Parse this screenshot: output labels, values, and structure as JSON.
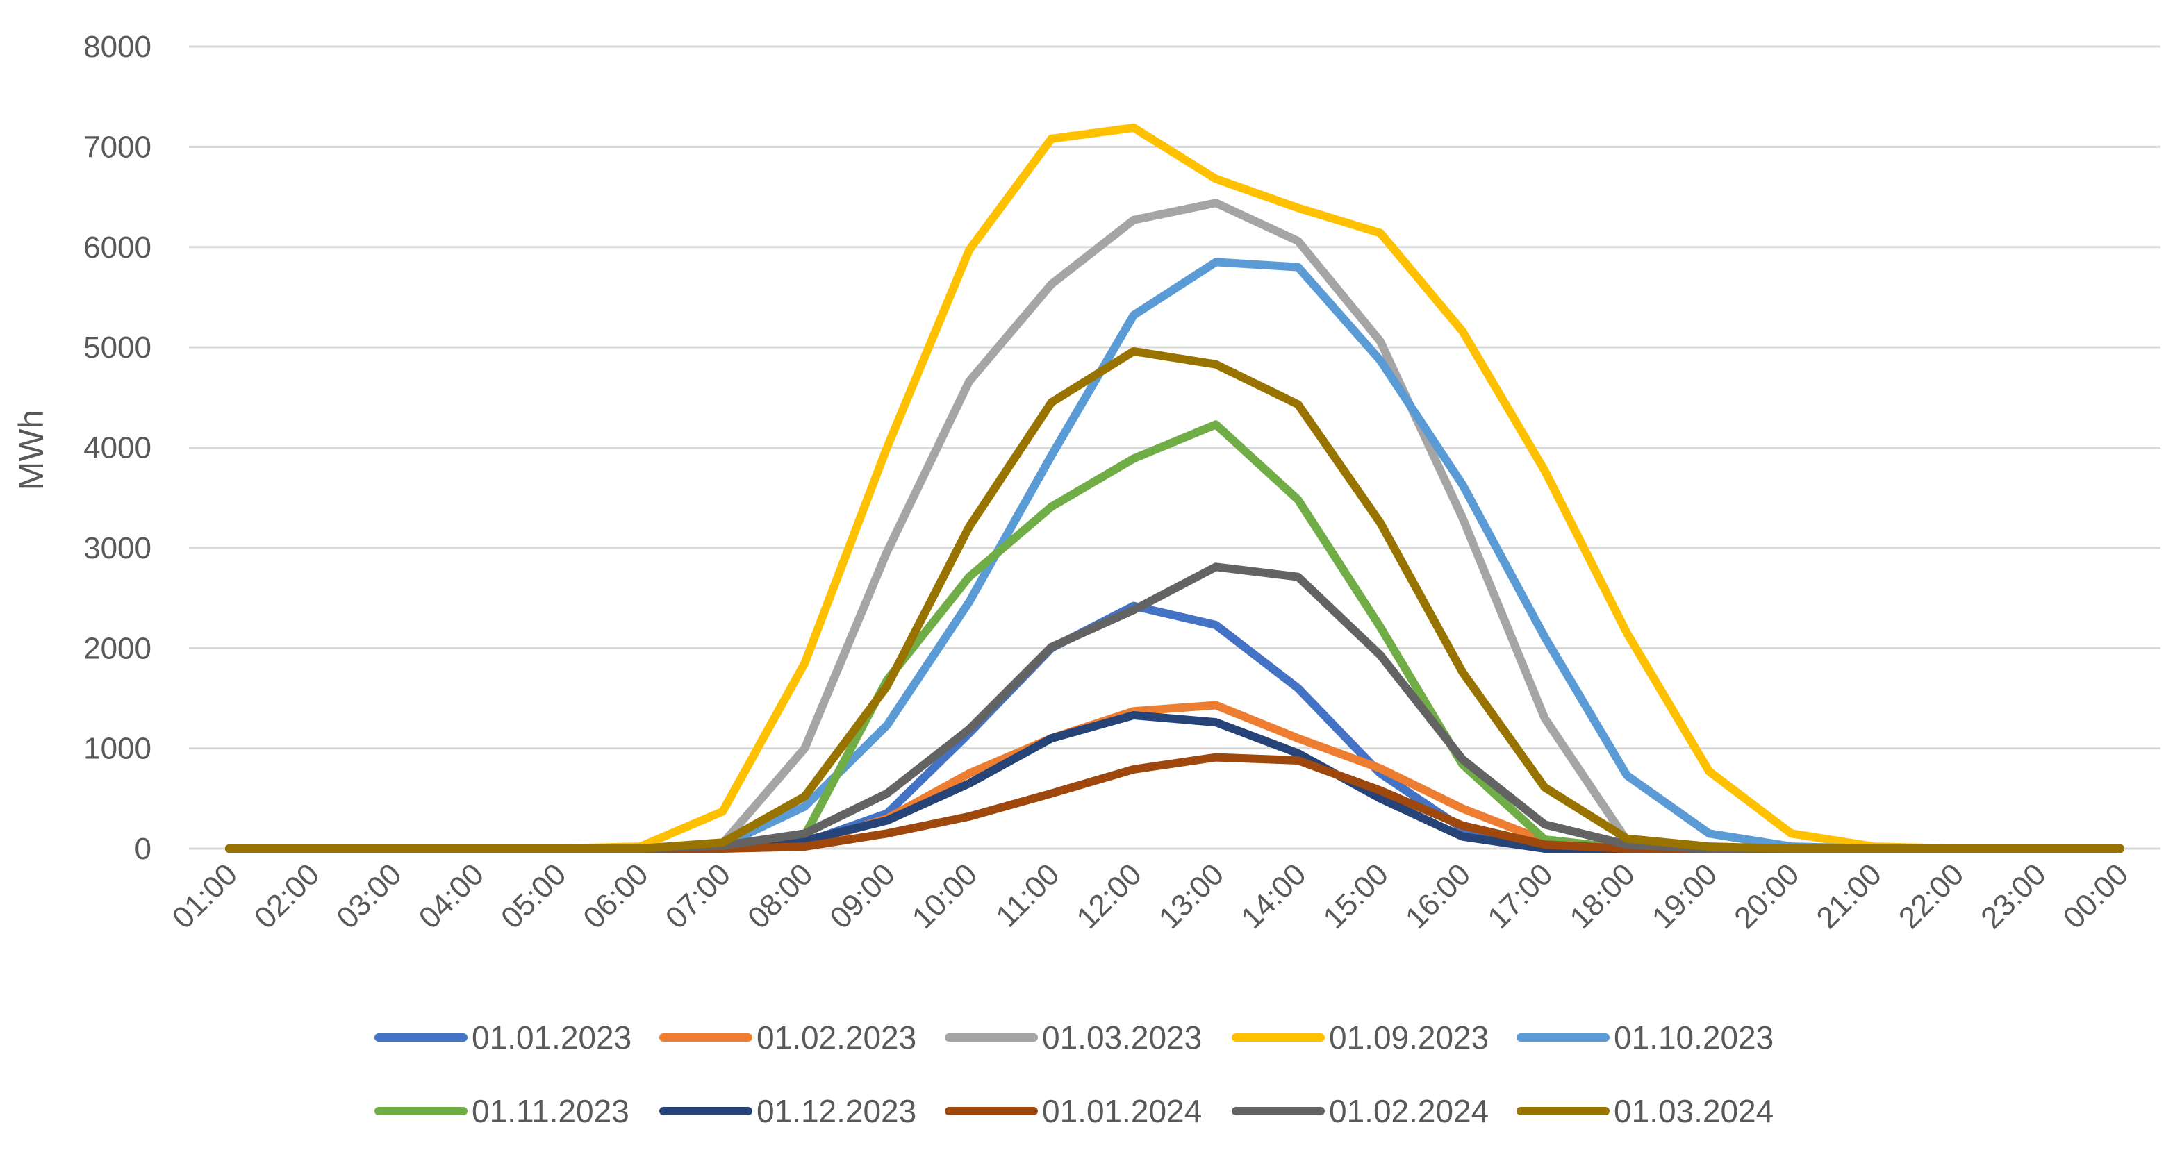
{
  "chart_data": {
    "type": "line",
    "title": "",
    "xlabel": "",
    "ylabel": "MWh",
    "ylim": [
      0,
      8000
    ],
    "yticks": [
      0,
      1000,
      2000,
      3000,
      4000,
      5000,
      6000,
      7000,
      8000
    ],
    "grid": true,
    "legend_position": "bottom",
    "categories": [
      "01:00",
      "02:00",
      "03:00",
      "04:00",
      "05:00",
      "06:00",
      "07:00",
      "08:00",
      "09:00",
      "10:00",
      "11:00",
      "12:00",
      "13:00",
      "14:00",
      "15:00",
      "16:00",
      "17:00",
      "18:00",
      "19:00",
      "20:00",
      "21:00",
      "22:00",
      "23:00",
      "00:00"
    ],
    "series": [
      {
        "name": "01.01.2023",
        "color": "#4472C4",
        "values": [
          0,
          0,
          0,
          0,
          0,
          0,
          20,
          60,
          350,
          1150,
          2000,
          2420,
          2230,
          1600,
          750,
          200,
          0,
          0,
          0,
          0,
          0,
          0,
          0,
          0
        ]
      },
      {
        "name": "01.02.2023",
        "color": "#ED7D31",
        "values": [
          0,
          0,
          0,
          0,
          0,
          0,
          10,
          40,
          300,
          750,
          1100,
          1370,
          1430,
          1100,
          800,
          400,
          80,
          0,
          0,
          0,
          0,
          0,
          0,
          0
        ]
      },
      {
        "name": "01.03.2023",
        "color": "#A5A5A5",
        "values": [
          0,
          0,
          0,
          0,
          0,
          0,
          50,
          1000,
          2960,
          4660,
          5630,
          6270,
          6440,
          6060,
          5060,
          3300,
          1300,
          80,
          0,
          0,
          0,
          0,
          0,
          0
        ]
      },
      {
        "name": "01.09.2023",
        "color": "#FFC000",
        "values": [
          0,
          0,
          0,
          0,
          0,
          20,
          370,
          1850,
          4000,
          5970,
          7080,
          7190,
          6680,
          6390,
          6140,
          5160,
          3770,
          2150,
          770,
          150,
          20,
          0,
          0,
          0
        ]
      },
      {
        "name": "01.10.2023",
        "color": "#5B9BD5",
        "values": [
          0,
          0,
          0,
          0,
          0,
          0,
          30,
          420,
          1230,
          2460,
          3920,
          5320,
          5850,
          5800,
          4870,
          3630,
          2110,
          730,
          150,
          20,
          0,
          0,
          0,
          0
        ]
      },
      {
        "name": "01.11.2023",
        "color": "#70AD47",
        "values": [
          0,
          0,
          0,
          0,
          0,
          0,
          20,
          130,
          1680,
          2710,
          3410,
          3890,
          4230,
          3480,
          2210,
          840,
          90,
          0,
          0,
          0,
          0,
          0,
          0,
          0
        ]
      },
      {
        "name": "01.12.2023",
        "color": "#264478",
        "values": [
          0,
          0,
          0,
          0,
          0,
          0,
          10,
          80,
          280,
          650,
          1100,
          1330,
          1260,
          950,
          500,
          120,
          0,
          0,
          0,
          0,
          0,
          0,
          0,
          0
        ]
      },
      {
        "name": "01.01.2024",
        "color": "#9E480E",
        "values": [
          0,
          0,
          0,
          0,
          0,
          0,
          0,
          20,
          150,
          320,
          550,
          790,
          910,
          880,
          580,
          230,
          40,
          0,
          0,
          0,
          0,
          0,
          0,
          0
        ]
      },
      {
        "name": "01.02.2024",
        "color": "#636363",
        "values": [
          0,
          0,
          0,
          0,
          0,
          0,
          30,
          150,
          550,
          1190,
          2010,
          2380,
          2810,
          2710,
          1930,
          890,
          240,
          40,
          0,
          0,
          0,
          0,
          0,
          0
        ]
      },
      {
        "name": "01.03.2024",
        "color": "#997300",
        "values": [
          0,
          0,
          0,
          0,
          0,
          0,
          60,
          520,
          1620,
          3210,
          4450,
          4960,
          4830,
          4430,
          3250,
          1760,
          610,
          100,
          20,
          0,
          0,
          0,
          0,
          0
        ]
      }
    ]
  }
}
